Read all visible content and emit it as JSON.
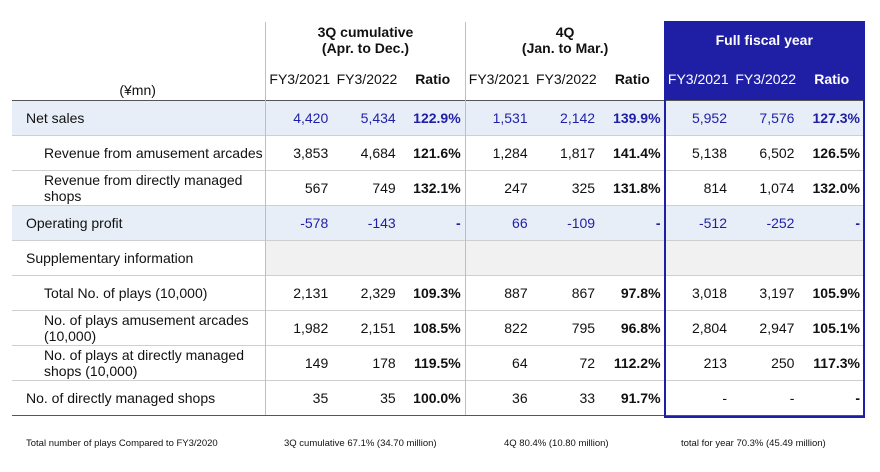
{
  "unit": "(¥mn)",
  "groups": [
    {
      "title": "3Q cumulative",
      "subtitle": "(Apr. to Dec.)"
    },
    {
      "title": "4Q",
      "subtitle": "(Jan. to Mar.)"
    },
    {
      "title": "Full fiscal year",
      "subtitle": ""
    }
  ],
  "columns": {
    "y1": "FY3/2021",
    "y2": "FY3/2022",
    "ratio": "Ratio"
  },
  "rows": [
    {
      "label": "Net sales",
      "values": [
        "4,420",
        "5,434",
        "122.9%",
        "1,531",
        "2,142",
        "139.9%",
        "5,952",
        "7,576",
        "127.3%"
      ]
    },
    {
      "label": "Revenue from amusement arcades",
      "values": [
        "3,853",
        "4,684",
        "121.6%",
        "1,284",
        "1,817",
        "141.4%",
        "5,138",
        "6,502",
        "126.5%"
      ]
    },
    {
      "label": "Revenue from directly managed shops",
      "values": [
        "567",
        "749",
        "132.1%",
        "247",
        "325",
        "131.8%",
        "814",
        "1,074",
        "132.0%"
      ]
    },
    {
      "label": "Operating profit",
      "values": [
        "-578",
        "-143",
        "-",
        "66",
        "-109",
        "-",
        "-512",
        "-252",
        "-"
      ]
    },
    {
      "label": "Supplementary information",
      "values": []
    },
    {
      "label": "Total No. of plays (10,000)",
      "values": [
        "2,131",
        "2,329",
        "109.3%",
        "887",
        "867",
        "97.8%",
        "3,018",
        "3,197",
        "105.9%"
      ]
    },
    {
      "label": "No. of plays amusement arcades (10,000)",
      "values": [
        "1,982",
        "2,151",
        "108.5%",
        "822",
        "795",
        "96.8%",
        "2,804",
        "2,947",
        "105.1%"
      ]
    },
    {
      "label": "No. of plays at directly managed shops (10,000)",
      "values": [
        "149",
        "178",
        "119.5%",
        "64",
        "72",
        "112.2%",
        "213",
        "250",
        "117.3%"
      ]
    },
    {
      "label": "No. of directly managed shops",
      "values": [
        "35",
        "35",
        "100.0%",
        "36",
        "33",
        "91.7%",
        "-",
        "-",
        "-"
      ]
    }
  ],
  "footnotes": {
    "label": "Total number of plays Compared to FY3/2020",
    "q3": "3Q cumulative 67.1% (34.70 million)",
    "q4": "4Q 80.4% (10.80 million)",
    "year": "total for year 70.3% (45.49 million)"
  },
  "colors": {
    "accent": "#1f1fa6",
    "highlight_row": "#e8eef8",
    "gray_row": "#f1f1f1"
  }
}
